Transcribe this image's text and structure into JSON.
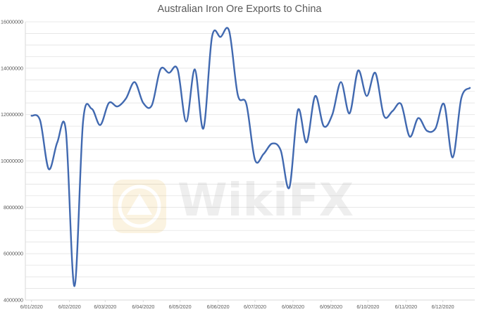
{
  "chart_data": {
    "type": "line",
    "title": "Australian Iron Ore Exports to China",
    "xlabel": "",
    "ylabel": "",
    "ylim": [
      4000000,
      16000000
    ],
    "y_ticks": [
      "4000000",
      "6000000",
      "8000000",
      "10000000",
      "12000000",
      "14000000",
      "16000000"
    ],
    "x_tick_labels": [
      "6/01/2020",
      "6/02/2020",
      "6/03/2020",
      "6/04/2020",
      "6/05/2020",
      "6/06/2020",
      "6/07/2020",
      "6/08/2020",
      "6/09/2020",
      "6/10/2020",
      "6/11/2020",
      "6/12/2020"
    ],
    "grid": "horizontal",
    "legend": "none",
    "series": [
      {
        "color": "#4169b0",
        "points": [
          [
            "2020-01-06",
            11950000
          ],
          [
            "2020-01-13",
            11750000
          ],
          [
            "2020-01-20",
            9650000
          ],
          [
            "2020-01-27",
            10800000
          ],
          [
            "2020-02-03",
            11300000
          ],
          [
            "2020-02-10",
            4600000
          ],
          [
            "2020-02-17",
            11700000
          ],
          [
            "2020-02-24",
            12250000
          ],
          [
            "2020-03-02",
            11550000
          ],
          [
            "2020-03-09",
            12500000
          ],
          [
            "2020-03-16",
            12350000
          ],
          [
            "2020-03-23",
            12700000
          ],
          [
            "2020-03-30",
            13400000
          ],
          [
            "2020-04-06",
            12500000
          ],
          [
            "2020-04-13",
            12400000
          ],
          [
            "2020-04-20",
            13950000
          ],
          [
            "2020-04-27",
            13800000
          ],
          [
            "2020-05-04",
            13950000
          ],
          [
            "2020-05-11",
            11700000
          ],
          [
            "2020-05-18",
            13950000
          ],
          [
            "2020-05-25",
            11400000
          ],
          [
            "2020-06-01",
            15350000
          ],
          [
            "2020-06-08",
            15350000
          ],
          [
            "2020-06-15",
            15600000
          ],
          [
            "2020-06-22",
            12850000
          ],
          [
            "2020-06-29",
            12450000
          ],
          [
            "2020-07-06",
            10050000
          ],
          [
            "2020-07-13",
            10300000
          ],
          [
            "2020-07-20",
            10750000
          ],
          [
            "2020-07-27",
            10450000
          ],
          [
            "2020-08-03",
            8850000
          ],
          [
            "2020-08-10",
            12200000
          ],
          [
            "2020-08-17",
            10800000
          ],
          [
            "2020-08-24",
            12800000
          ],
          [
            "2020-08-31",
            11500000
          ],
          [
            "2020-09-07",
            12000000
          ],
          [
            "2020-09-14",
            13400000
          ],
          [
            "2020-09-21",
            12050000
          ],
          [
            "2020-09-28",
            13900000
          ],
          [
            "2020-10-05",
            12800000
          ],
          [
            "2020-10-12",
            13800000
          ],
          [
            "2020-10-19",
            11950000
          ],
          [
            "2020-10-26",
            12150000
          ],
          [
            "2020-11-02",
            12450000
          ],
          [
            "2020-11-09",
            11050000
          ],
          [
            "2020-11-16",
            11850000
          ],
          [
            "2020-11-23",
            11300000
          ],
          [
            "2020-11-30",
            11400000
          ],
          [
            "2020-12-07",
            12450000
          ],
          [
            "2020-12-14",
            10150000
          ],
          [
            "2020-12-21",
            12700000
          ],
          [
            "2020-12-28",
            13150000
          ]
        ]
      }
    ]
  },
  "watermark": {
    "text": "WikiFX"
  }
}
